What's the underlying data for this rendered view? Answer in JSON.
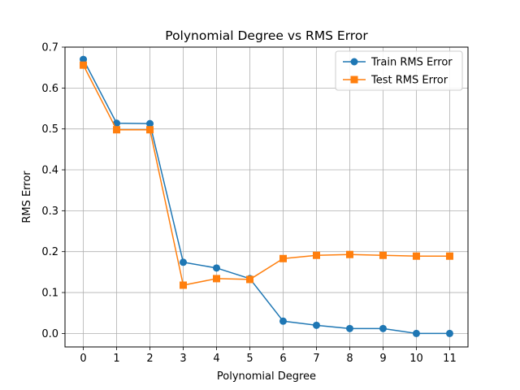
{
  "chart_data": {
    "type": "line",
    "title": "Polynomial Degree vs RMS Error",
    "xlabel": "Polynomial Degree",
    "ylabel": "RMS Error",
    "x": [
      0,
      1,
      2,
      3,
      4,
      5,
      6,
      7,
      8,
      9,
      10,
      11
    ],
    "xticks": [
      "0",
      "1",
      "2",
      "3",
      "4",
      "5",
      "6",
      "7",
      "8",
      "9",
      "10",
      "11"
    ],
    "yticks": [
      "0.0",
      "0.1",
      "0.2",
      "0.3",
      "0.4",
      "0.5",
      "0.6",
      "0.7"
    ],
    "xlim": [
      -0.55,
      11.55
    ],
    "ylim": [
      -0.033,
      0.7
    ],
    "grid": true,
    "legend_position": "top-right",
    "series": [
      {
        "name": "Train RMS Error",
        "color": "#1f77b4",
        "marker": "circle",
        "values": [
          0.67,
          0.514,
          0.513,
          0.174,
          0.16,
          0.134,
          0.03,
          0.02,
          0.012,
          0.012,
          0.0,
          0.0
        ]
      },
      {
        "name": "Test RMS Error",
        "color": "#ff7f0e",
        "marker": "square",
        "values": [
          0.656,
          0.498,
          0.498,
          0.118,
          0.134,
          0.132,
          0.183,
          0.191,
          0.193,
          0.191,
          0.189,
          0.189
        ]
      }
    ]
  }
}
